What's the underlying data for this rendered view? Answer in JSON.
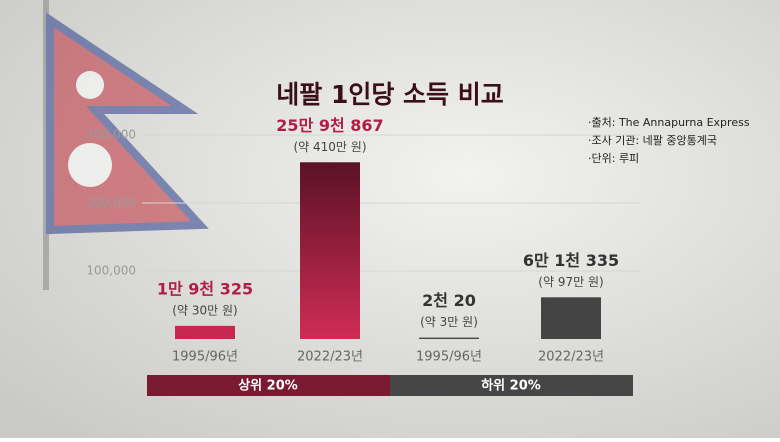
{
  "chart_data": {
    "type": "bar",
    "title": "네팔 1인당 소득 비교",
    "notes": [
      "·출처: The Annapurna Express",
      "·조사 기관: 네팔 중앙통계국",
      "·단위: 루피"
    ],
    "categories": [
      "1995/96년",
      "2022/23년",
      "1995/96년",
      "2022/23년"
    ],
    "values": [
      19325,
      259867,
      2020,
      61335
    ],
    "value_labels": [
      "1만 9천 325",
      "25만 9천 867",
      "2천 20",
      "6만 1천 335"
    ],
    "annotations": [
      "(약 30만 원)",
      "(약 410만 원)",
      "(약 3만 원)",
      "(약 97만 원)"
    ],
    "colors": [
      "#c8284f",
      "#c8284f",
      "#444444",
      "#444444"
    ],
    "groups": [
      {
        "label": "상위 20%",
        "color": "#7a1a30"
      },
      {
        "label": "하위 20%",
        "color": "#464646"
      }
    ],
    "ylim": [
      0,
      300000
    ],
    "yticks": [
      {
        "value": 100000,
        "label": "100,000"
      },
      {
        "value": 200000,
        "label": "200,000"
      },
      {
        "value": 300000,
        "label": "300,000"
      }
    ],
    "grid": true
  }
}
